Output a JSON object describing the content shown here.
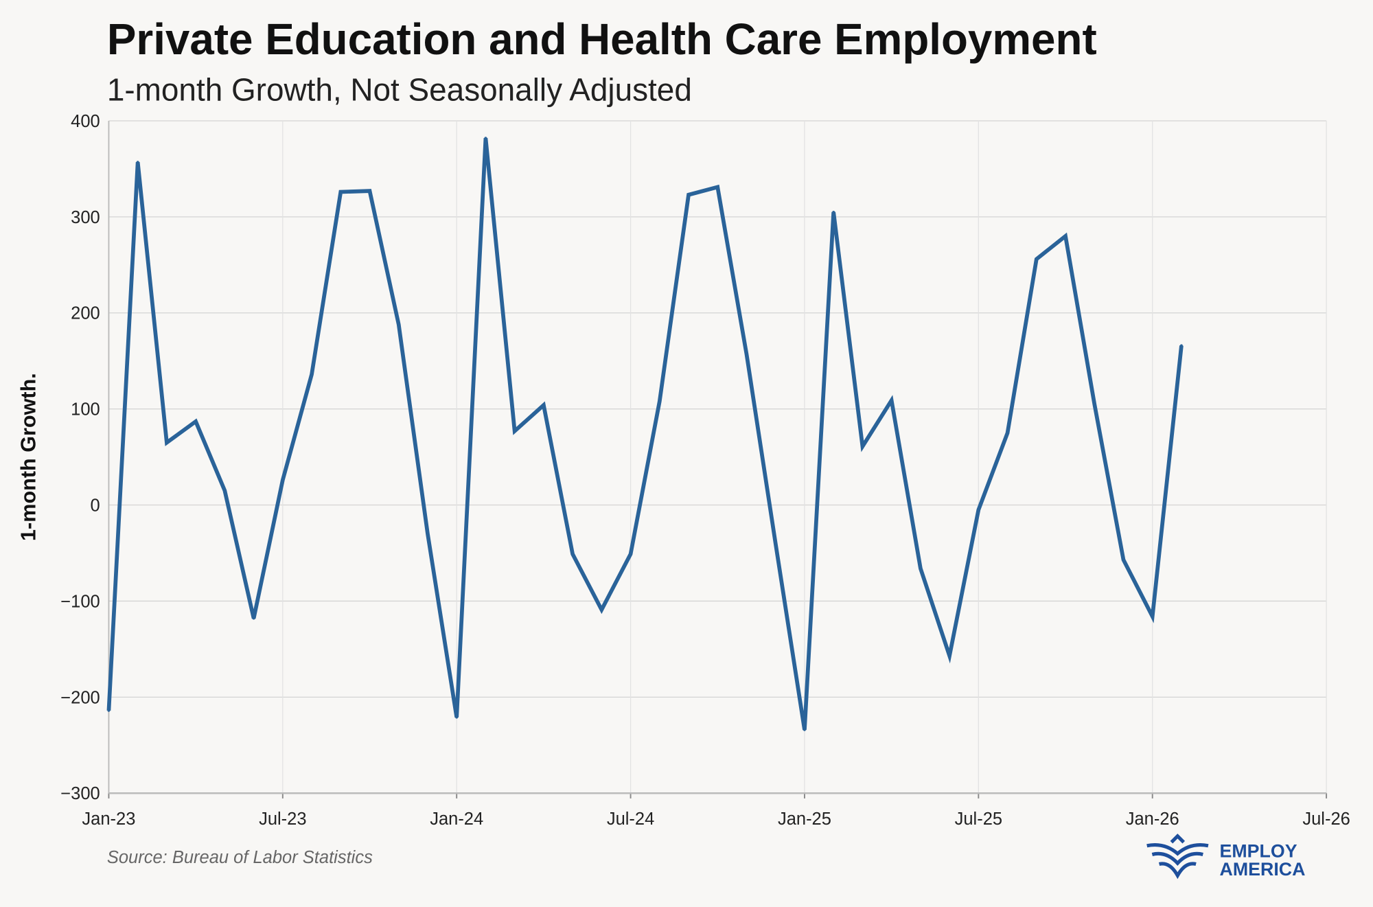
{
  "chart_data": {
    "type": "line",
    "title": "Private Education and Health Care Employment",
    "subtitle": "1-month Growth, Not Seasonally Adjusted",
    "xlabel": "",
    "ylabel": "1-month Growth.",
    "ylim": [
      -300,
      400
    ],
    "yticks": [
      400,
      300,
      200,
      100,
      0,
      -100,
      -200,
      -300
    ],
    "ytick_labels": [
      "400",
      "300",
      "200",
      "100",
      "0",
      "−100",
      "−200",
      "−300"
    ],
    "xtick_labels": [
      "Jan-23",
      "Jul-23",
      "Jan-24",
      "Jul-24",
      "Jan-25",
      "Jul-25",
      "Jan-26",
      "Jul-26"
    ],
    "x_range_months": [
      0,
      42
    ],
    "grid": true,
    "series": [
      {
        "name": "1-month Growth",
        "color": "#2a6399",
        "x_months": [
          0,
          1,
          2,
          3,
          4,
          5,
          6,
          7,
          8,
          9,
          10,
          11,
          12,
          13,
          14,
          15,
          16,
          17,
          18,
          19,
          20,
          21,
          22,
          23,
          24,
          25,
          26,
          27,
          28,
          29,
          30,
          31,
          32,
          33,
          34,
          35,
          36,
          37
        ],
        "values": [
          -214,
          357,
          65,
          87,
          15,
          -118,
          26,
          136,
          326,
          327,
          188,
          -30,
          -221,
          382,
          77,
          104,
          -51,
          -109,
          -51,
          108,
          323,
          331,
          157,
          -40,
          -234,
          305,
          61,
          109,
          -66,
          -157,
          -5,
          75,
          256,
          280,
          105,
          -57,
          -116,
          166
        ]
      }
    ]
  },
  "source": "Source: Bureau of Labor Statistics",
  "logo": {
    "line1": "EMPLOY",
    "line2": "AMERICA",
    "color": "#1e4f9c"
  }
}
